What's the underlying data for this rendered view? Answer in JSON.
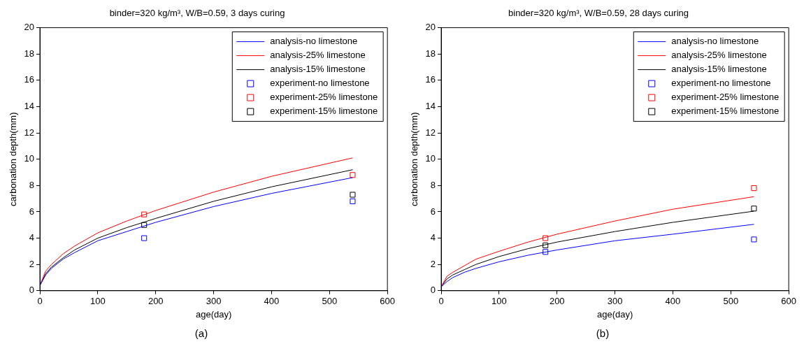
{
  "chart_data": [
    {
      "type": "line",
      "title": "binder=320 kg/m³, W/B=0.59, 3 days curing",
      "xlabel": "age(day)",
      "ylabel": "carbonation depth(mm)",
      "xlim": [
        0,
        600
      ],
      "xticks": [
        0,
        100,
        200,
        300,
        400,
        500,
        600
      ],
      "ylim": [
        0,
        20
      ],
      "yticks": [
        0,
        2,
        4,
        6,
        8,
        10,
        12,
        14,
        16,
        18,
        20
      ],
      "grid": false,
      "legend": "top right",
      "line_style": "solid",
      "annotations": [
        "(a)"
      ],
      "series": [
        {
          "name": "analysis-no limestone",
          "type": "line",
          "color": "#0000ff",
          "x": [
            0,
            10,
            20,
            40,
            60,
            100,
            150,
            200,
            300,
            400,
            540
          ],
          "values": [
            0.4,
            1.2,
            1.7,
            2.4,
            2.9,
            3.8,
            4.5,
            5.2,
            6.4,
            7.4,
            8.6
          ]
        },
        {
          "name": "analysis-25% limestone",
          "type": "line",
          "color": "#ff0000",
          "x": [
            0,
            10,
            20,
            40,
            60,
            100,
            150,
            200,
            300,
            400,
            540
          ],
          "values": [
            0.4,
            1.5,
            2.0,
            2.8,
            3.4,
            4.4,
            5.3,
            6.1,
            7.5,
            8.7,
            10.1
          ]
        },
        {
          "name": "analysis-15% limestone",
          "type": "line",
          "color": "#000000",
          "x": [
            0,
            10,
            20,
            40,
            60,
            100,
            150,
            200,
            300,
            400,
            540
          ],
          "values": [
            0.4,
            1.3,
            1.8,
            2.5,
            3.1,
            4.0,
            4.8,
            5.5,
            6.8,
            7.9,
            9.2
          ]
        },
        {
          "name": "experiment-no limestone",
          "type": "scatter",
          "marker": "square",
          "color": "#0000ff",
          "x": [
            180,
            540
          ],
          "values": [
            4.0,
            6.8
          ]
        },
        {
          "name": "experiment-25% limestone",
          "type": "scatter",
          "marker": "square",
          "color": "#ff0000",
          "x": [
            180,
            540
          ],
          "values": [
            5.8,
            8.8
          ]
        },
        {
          "name": "experiment-15% limestone",
          "type": "scatter",
          "marker": "square",
          "color": "#000000",
          "x": [
            180,
            540
          ],
          "values": [
            5.0,
            7.3
          ]
        }
      ]
    },
    {
      "type": "line",
      "title": "binder=320 kg/m³, W/B=0.59, 28 days curing",
      "xlabel": "age(day)",
      "ylabel": "carbonation depth(mm)",
      "xlim": [
        0,
        600
      ],
      "xticks": [
        0,
        100,
        200,
        300,
        400,
        500,
        600
      ],
      "ylim": [
        0,
        20
      ],
      "yticks": [
        0,
        2,
        4,
        6,
        8,
        10,
        12,
        14,
        16,
        18,
        20
      ],
      "grid": false,
      "legend": "top right",
      "line_style": "solid",
      "annotations": [
        "(b)"
      ],
      "series": [
        {
          "name": "analysis-no limestone",
          "type": "line",
          "color": "#0000ff",
          "x": [
            0,
            10,
            20,
            40,
            60,
            100,
            150,
            200,
            300,
            400,
            540
          ],
          "values": [
            0.3,
            0.7,
            1.0,
            1.4,
            1.7,
            2.2,
            2.7,
            3.1,
            3.8,
            4.3,
            5.05
          ]
        },
        {
          "name": "analysis-25% limestone",
          "type": "line",
          "color": "#ff0000",
          "x": [
            0,
            10,
            20,
            40,
            60,
            100,
            150,
            200,
            300,
            400,
            540
          ],
          "values": [
            0.3,
            1.1,
            1.4,
            1.9,
            2.4,
            3.0,
            3.7,
            4.3,
            5.3,
            6.2,
            7.15
          ]
        },
        {
          "name": "analysis-15% limestone",
          "type": "line",
          "color": "#000000",
          "x": [
            0,
            10,
            20,
            40,
            60,
            100,
            150,
            200,
            300,
            400,
            540
          ],
          "values": [
            0.3,
            0.9,
            1.2,
            1.6,
            2.0,
            2.6,
            3.2,
            3.7,
            4.5,
            5.2,
            6.05
          ]
        },
        {
          "name": "experiment-no limestone",
          "type": "scatter",
          "marker": "square",
          "color": "#0000ff",
          "x": [
            180,
            540
          ],
          "values": [
            2.95,
            3.9
          ]
        },
        {
          "name": "experiment-25% limestone",
          "type": "scatter",
          "marker": "square",
          "color": "#ff0000",
          "x": [
            180,
            540
          ],
          "values": [
            4.0,
            7.8
          ]
        },
        {
          "name": "experiment-15% limestone",
          "type": "scatter",
          "marker": "square",
          "color": "#000000",
          "x": [
            180,
            540
          ],
          "values": [
            3.45,
            6.25
          ]
        }
      ]
    }
  ]
}
